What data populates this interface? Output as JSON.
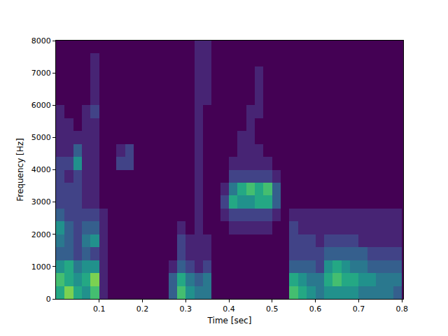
{
  "chart_data": {
    "type": "heatmap",
    "x_label": "Time [sec]",
    "y_label": "Frequency [Hz]",
    "color": "Viridis",
    "xlim": [
      0,
      0.803
    ],
    "xticks": [
      0.1,
      0.2,
      0.3,
      0.4,
      0.5,
      0.6,
      0.7,
      0.8
    ],
    "ylim": [
      0,
      8000
    ],
    "yticks": [
      0,
      1000,
      2000,
      3000,
      4000,
      5000,
      6000,
      7000,
      8000
    ],
    "zlim": [
      0,
      10
    ],
    "x": [
      0.01,
      0.03,
      0.05,
      0.07,
      0.09,
      0.11,
      0.13,
      0.15,
      0.17,
      0.19,
      0.21,
      0.23,
      0.25,
      0.27,
      0.29,
      0.31,
      0.33,
      0.35,
      0.37,
      0.39,
      0.41,
      0.43,
      0.45,
      0.47,
      0.49,
      0.51,
      0.53,
      0.55,
      0.57,
      0.59,
      0.61,
      0.63,
      0.65,
      0.67,
      0.69,
      0.71,
      0.73,
      0.75,
      0.77,
      0.79
    ],
    "y": [
      200,
      600,
      1000,
      1400,
      1800,
      2200,
      2600,
      3000,
      3400,
      3800,
      4200,
      4600,
      5000,
      5400,
      5800,
      6200,
      6600,
      7000,
      7400,
      7800
    ],
    "z": [
      [
        6,
        8,
        6,
        5,
        7,
        1,
        0,
        0,
        0,
        0,
        0,
        0,
        0,
        3,
        7,
        5,
        4,
        4,
        0,
        0,
        0,
        0,
        0,
        0,
        0,
        0,
        0,
        7,
        6,
        5,
        4,
        5,
        5,
        5,
        5,
        4,
        4,
        4,
        4,
        3
      ],
      [
        7,
        6,
        5,
        6,
        8,
        1,
        0,
        0,
        0,
        0,
        0,
        0,
        0,
        3,
        6,
        4,
        3,
        4,
        0,
        0,
        0,
        0,
        0,
        0,
        0,
        0,
        0,
        6,
        5,
        4,
        4,
        6,
        7,
        6,
        6,
        5,
        5,
        4,
        4,
        4
      ],
      [
        5,
        6,
        4,
        5,
        5,
        1,
        0,
        0,
        0,
        0,
        0,
        0,
        0,
        1,
        3,
        2,
        1,
        2,
        0,
        0,
        0,
        0,
        0,
        0,
        0,
        0,
        0,
        3,
        3,
        3,
        2,
        5,
        6,
        5,
        4,
        4,
        3,
        3,
        3,
        3
      ],
      [
        3,
        3,
        2,
        3,
        2,
        1,
        0,
        0,
        0,
        0,
        0,
        0,
        0,
        0,
        2,
        1,
        1,
        1,
        0,
        0,
        0,
        0,
        0,
        0,
        0,
        0,
        0,
        2,
        2,
        2,
        2,
        3,
        3,
        3,
        3,
        3,
        2,
        2,
        2,
        2
      ],
      [
        4,
        3,
        2,
        4,
        5,
        1,
        0,
        0,
        0,
        0,
        0,
        0,
        0,
        0,
        2,
        1,
        1,
        1,
        0,
        0,
        0,
        0,
        0,
        0,
        0,
        0,
        0,
        2,
        2,
        2,
        1,
        2,
        2,
        2,
        2,
        1,
        1,
        1,
        1,
        1
      ],
      [
        5,
        3,
        2,
        3,
        3,
        1,
        0,
        0,
        0,
        0,
        0,
        0,
        0,
        0,
        1,
        0,
        1,
        0,
        0,
        0,
        1,
        1,
        1,
        1,
        1,
        0,
        0,
        2,
        1,
        1,
        1,
        1,
        1,
        1,
        1,
        1,
        1,
        1,
        1,
        1
      ],
      [
        3,
        2,
        2,
        2,
        2,
        1,
        0,
        0,
        0,
        0,
        0,
        0,
        0,
        0,
        0,
        0,
        1,
        0,
        0,
        1,
        2,
        2,
        2,
        2,
        2,
        1,
        0,
        1,
        1,
        1,
        1,
        1,
        1,
        1,
        1,
        1,
        1,
        1,
        1,
        1
      ],
      [
        2,
        2,
        2,
        1,
        1,
        0,
        0,
        0,
        0,
        0,
        0,
        0,
        0,
        0,
        0,
        0,
        1,
        0,
        0,
        2,
        6,
        5,
        5,
        6,
        6,
        3,
        0,
        0,
        0,
        0,
        0,
        0,
        0,
        0,
        0,
        0,
        0,
        0,
        0,
        0
      ],
      [
        2,
        2,
        2,
        1,
        1,
        0,
        0,
        0,
        0,
        0,
        0,
        0,
        0,
        0,
        0,
        0,
        1,
        0,
        0,
        1,
        4,
        6,
        7,
        6,
        7,
        3,
        0,
        0,
        0,
        0,
        0,
        0,
        0,
        0,
        0,
        0,
        0,
        0,
        0,
        0
      ],
      [
        2,
        1,
        2,
        1,
        1,
        0,
        0,
        0,
        0,
        0,
        0,
        0,
        0,
        0,
        0,
        0,
        1,
        0,
        0,
        0,
        2,
        2,
        2,
        2,
        2,
        1,
        0,
        0,
        0,
        0,
        0,
        0,
        0,
        0,
        0,
        0,
        0,
        0,
        0,
        0
      ],
      [
        2,
        2,
        5,
        1,
        1,
        0,
        0,
        2,
        2,
        0,
        0,
        0,
        0,
        0,
        0,
        0,
        1,
        0,
        0,
        0,
        1,
        1,
        1,
        1,
        1,
        0,
        0,
        0,
        0,
        0,
        0,
        0,
        0,
        0,
        0,
        0,
        0,
        0,
        0,
        0
      ],
      [
        1,
        1,
        3,
        1,
        1,
        0,
        0,
        1,
        2,
        0,
        0,
        0,
        0,
        0,
        0,
        0,
        1,
        0,
        0,
        0,
        0,
        1,
        1,
        1,
        0,
        0,
        0,
        0,
        0,
        0,
        0,
        0,
        0,
        0,
        0,
        0,
        0,
        0,
        0,
        0
      ],
      [
        1,
        1,
        1,
        1,
        1,
        0,
        0,
        0,
        0,
        0,
        0,
        0,
        0,
        0,
        0,
        0,
        1,
        0,
        0,
        0,
        0,
        1,
        1,
        0,
        0,
        0,
        0,
        0,
        0,
        0,
        0,
        0,
        0,
        0,
        0,
        0,
        0,
        0,
        0,
        0
      ],
      [
        1,
        1,
        0,
        1,
        1,
        0,
        0,
        0,
        0,
        0,
        0,
        0,
        0,
        0,
        0,
        0,
        1,
        0,
        0,
        0,
        0,
        0,
        1,
        0,
        0,
        0,
        0,
        0,
        0,
        0,
        0,
        0,
        0,
        0,
        0,
        0,
        0,
        0,
        0,
        0
      ],
      [
        1,
        0,
        0,
        1,
        2,
        0,
        0,
        0,
        0,
        0,
        0,
        0,
        0,
        0,
        0,
        0,
        1,
        0,
        0,
        0,
        0,
        0,
        1,
        1,
        0,
        0,
        0,
        0,
        0,
        0,
        0,
        0,
        0,
        0,
        0,
        0,
        0,
        0,
        0,
        0
      ],
      [
        0,
        0,
        0,
        0,
        1,
        0,
        0,
        0,
        0,
        0,
        0,
        0,
        0,
        0,
        0,
        0,
        1,
        1,
        0,
        0,
        0,
        0,
        0,
        1,
        0,
        0,
        0,
        0,
        0,
        0,
        0,
        0,
        0,
        0,
        0,
        0,
        0,
        0,
        0,
        0
      ],
      [
        0,
        0,
        0,
        0,
        1,
        0,
        0,
        0,
        0,
        0,
        0,
        0,
        0,
        0,
        0,
        0,
        1,
        1,
        0,
        0,
        0,
        0,
        0,
        1,
        0,
        0,
        0,
        0,
        0,
        0,
        0,
        0,
        0,
        0,
        0,
        0,
        0,
        0,
        0,
        0
      ],
      [
        0,
        0,
        0,
        0,
        1,
        0,
        0,
        0,
        0,
        0,
        0,
        0,
        0,
        0,
        0,
        0,
        1,
        1,
        0,
        0,
        0,
        0,
        0,
        1,
        0,
        0,
        0,
        0,
        0,
        0,
        0,
        0,
        0,
        0,
        0,
        0,
        0,
        0,
        0,
        0
      ],
      [
        0,
        0,
        0,
        0,
        1,
        0,
        0,
        0,
        0,
        0,
        0,
        0,
        0,
        0,
        0,
        0,
        1,
        1,
        0,
        0,
        0,
        0,
        0,
        0,
        0,
        0,
        0,
        0,
        0,
        0,
        0,
        0,
        0,
        0,
        0,
        0,
        0,
        0,
        0,
        0
      ],
      [
        0,
        0,
        0,
        0,
        0,
        0,
        0,
        0,
        0,
        0,
        0,
        0,
        0,
        0,
        0,
        0,
        1,
        1,
        0,
        0,
        0,
        0,
        0,
        0,
        0,
        0,
        0,
        0,
        0,
        0,
        0,
        0,
        0,
        0,
        0,
        0,
        0,
        0,
        0,
        0
      ]
    ]
  }
}
